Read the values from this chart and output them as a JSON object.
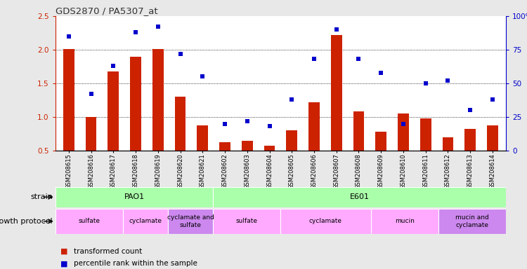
{
  "title": "GDS2870 / PA5307_at",
  "samples": [
    "GSM208615",
    "GSM208616",
    "GSM208617",
    "GSM208618",
    "GSM208619",
    "GSM208620",
    "GSM208621",
    "GSM208602",
    "GSM208603",
    "GSM208604",
    "GSM208605",
    "GSM208606",
    "GSM208607",
    "GSM208608",
    "GSM208609",
    "GSM208610",
    "GSM208611",
    "GSM208612",
    "GSM208613",
    "GSM208614"
  ],
  "transformed_count": [
    2.01,
    1.0,
    1.68,
    1.9,
    2.01,
    1.3,
    0.88,
    0.63,
    0.65,
    0.57,
    0.8,
    1.22,
    2.22,
    1.08,
    0.78,
    1.05,
    0.98,
    0.7,
    0.82,
    0.88
  ],
  "percentile_rank": [
    85,
    42,
    63,
    88,
    92,
    72,
    55,
    20,
    22,
    18,
    38,
    68,
    90,
    68,
    58,
    20,
    50,
    52,
    30,
    38
  ],
  "bar_color": "#cc2200",
  "dot_color": "#0000cc",
  "ylim_left": [
    0.5,
    2.5
  ],
  "ylim_right": [
    0,
    100
  ],
  "yticks_left": [
    0.5,
    1.0,
    1.5,
    2.0,
    2.5
  ],
  "yticks_right": [
    0,
    25,
    50,
    75,
    100
  ],
  "ytick_labels_right": [
    "0",
    "25",
    "50",
    "75",
    "100%"
  ],
  "strain_groups": [
    {
      "label": "PAO1",
      "start": 0,
      "end": 6,
      "color": "#aaffaa"
    },
    {
      "label": "E601",
      "start": 7,
      "end": 19,
      "color": "#aaffaa"
    }
  ],
  "growth_protocol_groups": [
    {
      "label": "sulfate",
      "start": 0,
      "end": 2,
      "color": "#ffaaff"
    },
    {
      "label": "cyclamate",
      "start": 3,
      "end": 4,
      "color": "#ffaaff"
    },
    {
      "label": "cyclamate and\nsulfate",
      "start": 5,
      "end": 6,
      "color": "#cc88ee"
    },
    {
      "label": "sulfate",
      "start": 7,
      "end": 9,
      "color": "#ffaaff"
    },
    {
      "label": "cyclamate",
      "start": 10,
      "end": 13,
      "color": "#ffaaff"
    },
    {
      "label": "mucin",
      "start": 14,
      "end": 16,
      "color": "#ffaaff"
    },
    {
      "label": "mucin and\ncyclamate",
      "start": 17,
      "end": 19,
      "color": "#cc88ee"
    }
  ],
  "row_label_strain": "strain",
  "row_label_growth": "growth protocol",
  "legend_items": [
    {
      "color": "#cc2200",
      "label": "transformed count"
    },
    {
      "color": "#0000cc",
      "label": "percentile rank within the sample"
    }
  ],
  "background_color": "#e8e8e8",
  "plot_bg": "#ffffff",
  "left_axis_color": "#cc2200",
  "right_axis_color": "#0000cc"
}
